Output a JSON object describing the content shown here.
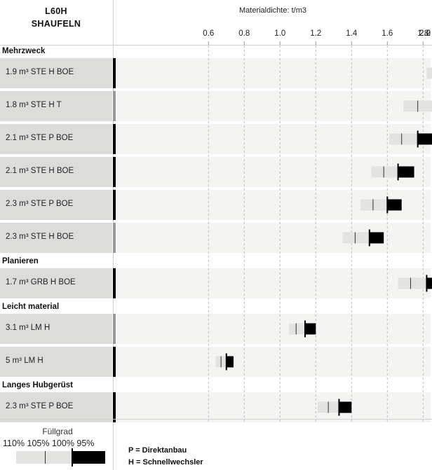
{
  "header": {
    "model": "L60H",
    "category": "SHAUFELN",
    "axis_title": "Materialdichte: t/m3"
  },
  "chart_data": {
    "type": "bar",
    "title": "Materialdichte: t/m3",
    "xlim": [
      0.4,
      2.2
    ],
    "xticks": [
      0.6,
      0.8,
      1.0,
      1.2,
      1.4,
      1.6,
      1.8,
      2.0,
      2.2
    ],
    "xtick_labels": [
      "0.6",
      "0.8",
      "1.0",
      "1.2",
      "1.4",
      "1.6",
      "1.8",
      "2.0",
      "2.2"
    ],
    "grid": true,
    "fill_levels": [
      "110%",
      "105%",
      "100%",
      "95%"
    ],
    "colors": {
      "light_range": "#e3e3e1",
      "dark_range": "#000000",
      "row_label_bg": "#dcdcda",
      "row_bg": "#f4f4f3",
      "gray_marker": "#999999"
    },
    "groups": [
      {
        "name": "Mehrzweck",
        "rows": [
          {
            "label": "1.9 m³ STE H BOE",
            "d110": 1.82,
            "d105": 1.9,
            "d100": 1.99,
            "d95": 2.1,
            "marker": "black"
          },
          {
            "label": "1.8 m³ STE H T",
            "d110": 1.69,
            "d105": 1.77,
            "d100": 1.86,
            "d95": 1.95,
            "marker": "gray"
          },
          {
            "label": "2.1 m³ STE P BOE",
            "d110": 1.61,
            "d105": 1.68,
            "d100": 1.77,
            "d95": 1.86,
            "marker": "black"
          },
          {
            "label": "2.1 m³ STE H BOE",
            "d110": 1.51,
            "d105": 1.58,
            "d100": 1.66,
            "d95": 1.75,
            "marker": "black"
          },
          {
            "label": "2.3 m³ STE P BOE",
            "d110": 1.45,
            "d105": 1.52,
            "d100": 1.6,
            "d95": 1.68,
            "marker": "black"
          },
          {
            "label": "2.3 m³ STE H BOE",
            "d110": 1.35,
            "d105": 1.42,
            "d100": 1.5,
            "d95": 1.58,
            "marker": "gray"
          }
        ]
      },
      {
        "name": "Planieren",
        "rows": [
          {
            "label": "1.7 m³ GRB H BOE",
            "d110": 1.66,
            "d105": 1.73,
            "d100": 1.82,
            "d95": 1.91,
            "marker": "black"
          }
        ]
      },
      {
        "name": "Leicht material",
        "rows": [
          {
            "label": "3.1 m³ LM H",
            "d110": 1.05,
            "d105": 1.09,
            "d100": 1.14,
            "d95": 1.2,
            "marker": "gray"
          },
          {
            "label": "5 m³ LM H",
            "d110": 0.64,
            "d105": 0.67,
            "d100": 0.7,
            "d95": 0.74,
            "marker": "black"
          }
        ]
      },
      {
        "name": "Langes Hubgerüst",
        "rows": [
          {
            "label": "2.3 m³ STE P BOE",
            "d110": 1.21,
            "d105": 1.27,
            "d100": 1.33,
            "d95": 1.4,
            "marker": "black"
          }
        ]
      }
    ]
  },
  "legend": {
    "title": "Füllgrad",
    "percents": "110% 105% 100% 95%",
    "note_p": "P = Direktanbau",
    "note_h": "H = Schnellwechsler"
  }
}
